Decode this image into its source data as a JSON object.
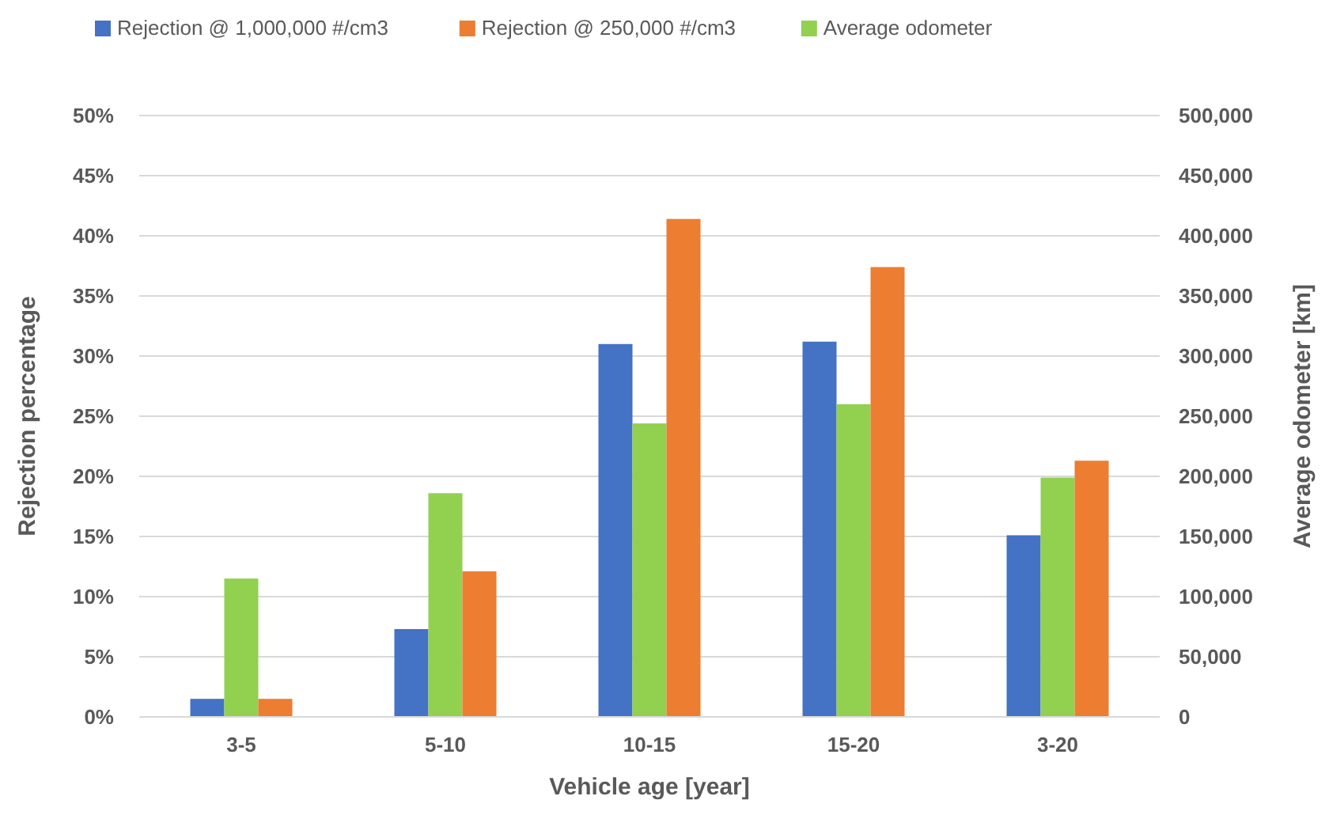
{
  "chart_data": {
    "type": "bar",
    "xlabel": "Vehicle age [year]",
    "ylabel": "Rejection percentage",
    "y2label": "Average odometer [km]",
    "categories": [
      "3-5",
      "5-10",
      "10-15",
      "15-20",
      "3-20"
    ],
    "series": [
      {
        "name": "Rejection @ 1,000,000 #/cm3",
        "color": "#4472c4",
        "values": [
          1.5,
          7.3,
          31.0,
          31.2,
          15.1
        ]
      },
      {
        "name": "Rejection @ 250,000 #/cm3",
        "color": "#ed7d31",
        "values": [
          1.5,
          12.1,
          41.4,
          37.4,
          21.3
        ]
      },
      {
        "name": "Average odometer",
        "color": "#92d050",
        "axis": "y2",
        "values": [
          115000,
          186000,
          244000,
          260000,
          199000
        ]
      }
    ],
    "ylim": [
      0,
      50
    ],
    "yticks": [
      {
        "value": 0,
        "label": "0%"
      },
      {
        "value": 5,
        "label": "5%"
      },
      {
        "value": 10,
        "label": "10%"
      },
      {
        "value": 15,
        "label": "15%"
      },
      {
        "value": 20,
        "label": "20%"
      },
      {
        "value": 25,
        "label": "25%"
      },
      {
        "value": 30,
        "label": "30%"
      },
      {
        "value": 35,
        "label": "35%"
      },
      {
        "value": 40,
        "label": "40%"
      },
      {
        "value": 45,
        "label": "45%"
      },
      {
        "value": 50,
        "label": "50%"
      }
    ],
    "y2lim": [
      0,
      500000
    ],
    "y2ticks": [
      0,
      {
        "value": 50000,
        "label": "50,000"
      },
      {
        "value": 100000,
        "label": "100,000"
      },
      {
        "value": 150000,
        "label": "150,000"
      },
      {
        "value": 200000,
        "label": "200,000"
      },
      {
        "value": 250000,
        "label": "250,000"
      },
      {
        "value": 300000,
        "label": "300,000"
      },
      {
        "value": 350000,
        "label": "350,000"
      },
      {
        "value": 400000,
        "label": "400,000"
      },
      {
        "value": 450000,
        "label": "450,000"
      },
      {
        "value": 500000,
        "label": "500,000"
      }
    ],
    "grid": "y",
    "legend": "top"
  }
}
